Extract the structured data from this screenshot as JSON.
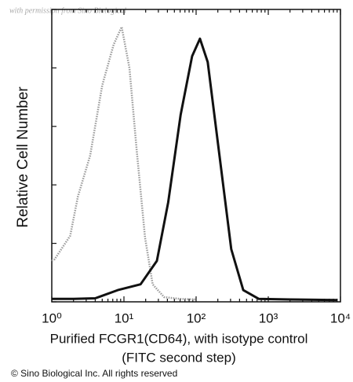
{
  "chart_data": {
    "type": "line",
    "watermark": "with permission from Sino Biological",
    "ylabel": "Relative Cell Number",
    "xlabel": [
      "Purified FCGR1(CD64), with isotype control",
      "(FITC second step)"
    ],
    "footer": "© Sino Biological Inc. All rights reserved",
    "xscale": "log",
    "xlim": [
      1,
      10000
    ],
    "xticks": [
      {
        "value": 1,
        "label": "10⁰"
      },
      {
        "value": 10,
        "label": "10¹"
      },
      {
        "value": 100,
        "label": "10²"
      },
      {
        "value": 1000,
        "label": "10³"
      },
      {
        "value": 10000,
        "label": "10⁴"
      }
    ],
    "ylim": [
      0,
      5
    ],
    "yticks": [
      0,
      1,
      2,
      3,
      4,
      5
    ],
    "series": [
      {
        "name": "isotype control",
        "color": "#9a9a9a",
        "x": [
          1,
          1.1,
          1.8,
          2.3,
          3.4,
          5,
          7.2,
          9.3,
          11.9,
          15,
          19.6,
          25,
          36,
          60,
          100
        ],
        "values": [
          0.7,
          0.73,
          1.13,
          1.8,
          2.5,
          3.7,
          4.4,
          4.7,
          4.0,
          2.6,
          1.1,
          0.3,
          0.08,
          0.05,
          0.04
        ]
      },
      {
        "name": "FCGR1(CD64)",
        "color": "#111111",
        "x": [
          1,
          2,
          4,
          8.2,
          17,
          28.6,
          41,
          61,
          88,
          113,
          145,
          211,
          307,
          450,
          740,
          2000,
          9000
        ],
        "values": [
          0.05,
          0.05,
          0.06,
          0.2,
          0.3,
          0.7,
          1.7,
          3.2,
          4.2,
          4.5,
          4.1,
          2.5,
          0.9,
          0.2,
          0.05,
          0.04,
          0.03
        ]
      }
    ]
  }
}
